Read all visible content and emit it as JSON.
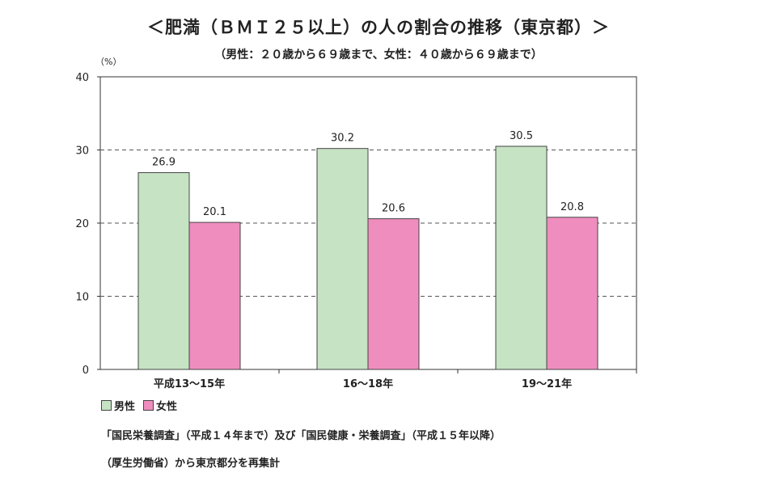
{
  "title": "＜肥満（ＢＭＩ２５以上）の人の割合の推移（東京都）＞",
  "subtitle": "（男性：２０歳から６９歳まで、女性：４０歳から６９歳まで）",
  "notes": [
    "「国民栄養調査」（平成１４年まで）及び「国民健康・栄養調査」（平成１５年以降）",
    "（厚生労働省）から東京都分を再集計"
  ],
  "colors": {
    "male": "#c6e3c3",
    "female": "#ef8dbf",
    "axis": "#333333",
    "grid": "#555555"
  },
  "chart_data": {
    "type": "bar",
    "unit_label": "（%）",
    "categories": [
      "平成13～15年",
      "16～18年",
      "19～21年"
    ],
    "series": [
      {
        "name": "男性",
        "values": [
          26.9,
          30.2,
          30.5
        ]
      },
      {
        "name": "女性",
        "values": [
          20.1,
          20.6,
          20.8
        ]
      }
    ],
    "ylim": [
      0,
      40
    ],
    "yticks": [
      "0",
      "10",
      "20",
      "30",
      "40"
    ],
    "grid": "dashed horizontal",
    "legend": "bottom-left"
  }
}
